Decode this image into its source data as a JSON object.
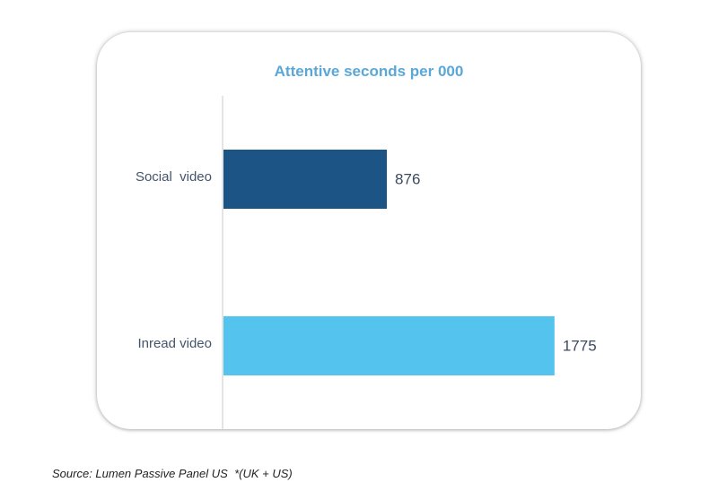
{
  "chart_data": {
    "type": "bar",
    "orientation": "horizontal",
    "title": "Attentive seconds per 000",
    "categories": [
      "Social  video",
      "Inread video"
    ],
    "values": [
      876,
      1775
    ],
    "xlim": [
      0,
      2150
    ],
    "colors": [
      "#1b5485",
      "#54c4ef"
    ],
    "grid": false,
    "legend": "none"
  },
  "footer": {
    "source": "Source: Lumen Passive Panel US",
    "note": "*(UK + US)"
  }
}
